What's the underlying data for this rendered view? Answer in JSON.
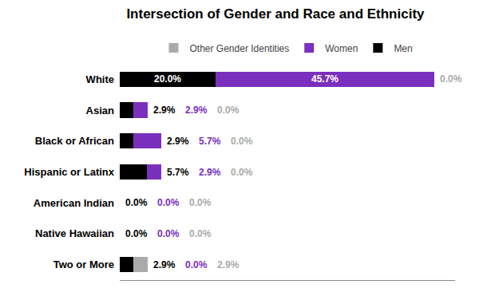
{
  "chart_data": {
    "type": "bar",
    "orientation": "horizontal",
    "stacked": true,
    "title": "Intersection of Gender and Race and Ethnicity",
    "categories": [
      "White",
      "Asian",
      "Black or African",
      "Hispanic or Latinx",
      "American Indian",
      "Native Hawaiian",
      "Two or More"
    ],
    "series": [
      {
        "name": "Men",
        "color": "#000000",
        "values": [
          20.0,
          2.9,
          2.9,
          5.7,
          0.0,
          0.0,
          2.9
        ],
        "value_labels": [
          "20.0%",
          "2.9%",
          "2.9%",
          "5.7%",
          "0.0%",
          "0.0%",
          "2.9%"
        ]
      },
      {
        "name": "Women",
        "color": "#7B2FBE",
        "values": [
          45.7,
          2.9,
          5.7,
          2.9,
          0.0,
          0.0,
          0.0
        ],
        "value_labels": [
          "45.7%",
          "2.9%",
          "5.7%",
          "2.9%",
          "0.0%",
          "0.0%",
          "0.0%"
        ]
      },
      {
        "name": "Other Gender Identities",
        "color": "#AAAAAA",
        "values": [
          0.0,
          0.0,
          0.0,
          0.0,
          0.0,
          0.0,
          2.9
        ],
        "value_labels": [
          "0.0%",
          "0.0%",
          "0.0%",
          "0.0%",
          "0.0%",
          "0.0%",
          "2.9%"
        ]
      }
    ],
    "xlim": [
      0,
      70
    ],
    "data_labels": true,
    "tick_labels": "y",
    "grid": false,
    "legend": "top"
  }
}
